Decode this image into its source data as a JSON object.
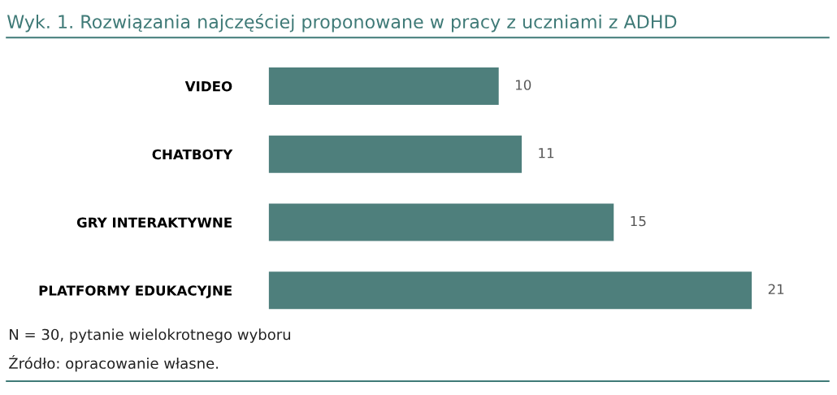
{
  "chart_data": {
    "type": "bar",
    "orientation": "horizontal",
    "title": "Wyk. 1. Rozwiązania najczęściej proponowane w pracy z uczniami z ADHD",
    "categories": [
      "VIDEO",
      "CHATBOTY",
      "GRY INTERAKTYWNE",
      "PLATFORMY EDUKACYJNE"
    ],
    "values": [
      10,
      11,
      15,
      21
    ],
    "color": "#4e7f7c",
    "data_labels": true,
    "grid": false,
    "legend": false,
    "annotations": [
      "N = 30, pytanie wielokrotnego wyboru",
      "Źródło: opracowanie własne."
    ]
  }
}
